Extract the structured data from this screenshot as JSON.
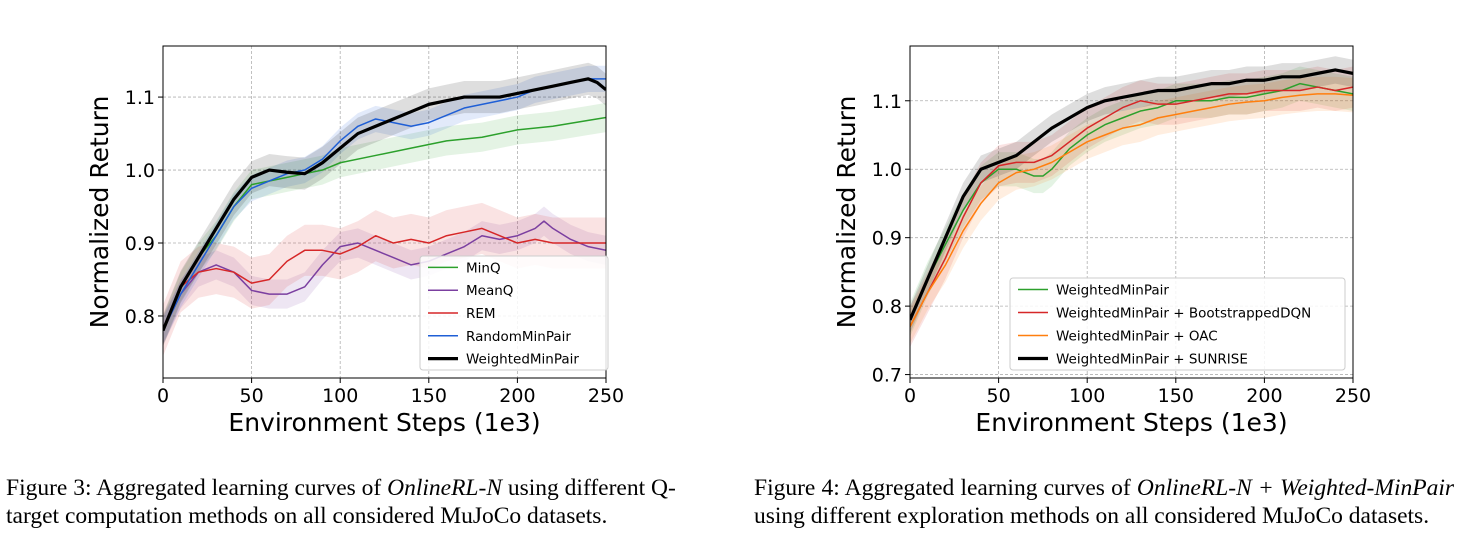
{
  "chart_data": [
    {
      "type": "line",
      "xlabel": "Environment Steps (1e3)",
      "ylabel": "Normalized Return",
      "xlim": [
        0,
        250
      ],
      "ylim": [
        0.715,
        1.17
      ],
      "xticks": [
        "0",
        "50",
        "100",
        "150",
        "200",
        "250"
      ],
      "xtick_values": [
        0,
        50,
        100,
        150,
        200,
        250
      ],
      "yticks": [
        "0.8",
        "0.9",
        "1.0",
        "1.1"
      ],
      "ytick_values": [
        0.8,
        0.9,
        1.0,
        1.1
      ],
      "grid": true,
      "legend_position": "lower-right",
      "series": [
        {
          "name": "MinQ",
          "color": "#2ca02c",
          "linewidth": 1.5,
          "x": [
            0,
            10,
            20,
            30,
            40,
            50,
            60,
            70,
            80,
            90,
            100,
            120,
            140,
            160,
            180,
            200,
            220,
            240,
            250
          ],
          "y": [
            0.78,
            0.84,
            0.88,
            0.91,
            0.95,
            0.98,
            0.985,
            0.99,
            0.995,
            1.0,
            1.01,
            1.02,
            1.03,
            1.04,
            1.045,
            1.055,
            1.06,
            1.068,
            1.072
          ],
          "band": 0.02
        },
        {
          "name": "MeanQ",
          "color": "#7b3fa0",
          "linewidth": 1.5,
          "x": [
            0,
            10,
            20,
            25,
            30,
            40,
            50,
            60,
            70,
            80,
            90,
            100,
            110,
            120,
            130,
            140,
            150,
            160,
            170,
            180,
            190,
            200,
            210,
            215,
            220,
            230,
            240,
            250
          ],
          "y": [
            0.78,
            0.83,
            0.86,
            0.865,
            0.87,
            0.86,
            0.835,
            0.83,
            0.83,
            0.84,
            0.87,
            0.895,
            0.9,
            0.89,
            0.88,
            0.87,
            0.875,
            0.885,
            0.895,
            0.91,
            0.905,
            0.91,
            0.92,
            0.93,
            0.92,
            0.905,
            0.895,
            0.89
          ],
          "band": 0.02
        },
        {
          "name": "REM",
          "color": "#d62728",
          "linewidth": 1.5,
          "x": [
            0,
            10,
            20,
            30,
            40,
            50,
            60,
            70,
            80,
            90,
            100,
            110,
            120,
            130,
            140,
            150,
            160,
            170,
            180,
            190,
            200,
            210,
            220,
            230,
            240,
            250
          ],
          "y": [
            0.78,
            0.84,
            0.86,
            0.865,
            0.86,
            0.845,
            0.85,
            0.875,
            0.89,
            0.89,
            0.885,
            0.895,
            0.91,
            0.9,
            0.905,
            0.9,
            0.91,
            0.915,
            0.92,
            0.91,
            0.9,
            0.905,
            0.9,
            0.9,
            0.9,
            0.9
          ],
          "band": 0.035
        },
        {
          "name": "RandomMinPair",
          "color": "#1f5fd6",
          "linewidth": 1.5,
          "x": [
            0,
            10,
            20,
            30,
            40,
            50,
            60,
            70,
            80,
            90,
            100,
            110,
            120,
            130,
            140,
            150,
            160,
            170,
            180,
            190,
            200,
            210,
            220,
            230,
            240,
            250
          ],
          "y": [
            0.78,
            0.83,
            0.87,
            0.91,
            0.95,
            0.975,
            0.985,
            0.995,
            1.0,
            1.015,
            1.04,
            1.06,
            1.07,
            1.065,
            1.06,
            1.065,
            1.075,
            1.085,
            1.09,
            1.095,
            1.1,
            1.11,
            1.115,
            1.12,
            1.125,
            1.125
          ],
          "band": 0.018
        },
        {
          "name": "WeightedMinPair",
          "color": "#000000",
          "linewidth": 3.2,
          "x": [
            0,
            10,
            20,
            30,
            40,
            50,
            60,
            70,
            80,
            90,
            100,
            110,
            120,
            130,
            140,
            150,
            160,
            170,
            180,
            190,
            200,
            210,
            220,
            230,
            240,
            245,
            250
          ],
          "y": [
            0.78,
            0.84,
            0.88,
            0.92,
            0.96,
            0.99,
            1.0,
            0.997,
            0.995,
            1.01,
            1.03,
            1.05,
            1.06,
            1.07,
            1.08,
            1.09,
            1.095,
            1.1,
            1.1,
            1.1,
            1.105,
            1.11,
            1.115,
            1.12,
            1.125,
            1.12,
            1.11
          ],
          "band": 0.022
        }
      ]
    },
    {
      "type": "line",
      "xlabel": "Environment Steps (1e3)",
      "ylabel": "Normalized Return",
      "xlim": [
        0,
        250
      ],
      "ylim": [
        0.695,
        1.18
      ],
      "xticks": [
        "0",
        "50",
        "100",
        "150",
        "200",
        "250"
      ],
      "xtick_values": [
        0,
        50,
        100,
        150,
        200,
        250
      ],
      "yticks": [
        "0.7",
        "0.8",
        "0.9",
        "1.0",
        "1.1"
      ],
      "ytick_values": [
        0.7,
        0.8,
        0.9,
        1.0,
        1.1
      ],
      "grid": true,
      "legend_position": "lower-right",
      "series": [
        {
          "name": "WeightedMinPair",
          "color": "#2ca02c",
          "linewidth": 1.5,
          "x": [
            0,
            10,
            20,
            30,
            40,
            50,
            60,
            70,
            75,
            80,
            90,
            100,
            110,
            120,
            130,
            140,
            150,
            160,
            170,
            180,
            190,
            200,
            210,
            220,
            230,
            240,
            250
          ],
          "y": [
            0.78,
            0.84,
            0.89,
            0.94,
            0.98,
            1.0,
            1.0,
            0.99,
            0.99,
            1.0,
            1.03,
            1.05,
            1.065,
            1.075,
            1.085,
            1.09,
            1.1,
            1.1,
            1.1,
            1.105,
            1.105,
            1.11,
            1.115,
            1.125,
            1.12,
            1.115,
            1.11
          ],
          "band": 0.025
        },
        {
          "name": "WeightedMinPair + BootstrappedDQN",
          "color": "#d62728",
          "linewidth": 1.5,
          "x": [
            0,
            10,
            20,
            30,
            40,
            50,
            60,
            70,
            80,
            90,
            100,
            110,
            120,
            130,
            140,
            150,
            160,
            170,
            180,
            190,
            200,
            210,
            220,
            230,
            240,
            250
          ],
          "y": [
            0.77,
            0.82,
            0.87,
            0.93,
            0.98,
            1.005,
            1.01,
            1.01,
            1.02,
            1.04,
            1.06,
            1.075,
            1.09,
            1.1,
            1.095,
            1.095,
            1.1,
            1.105,
            1.11,
            1.11,
            1.115,
            1.115,
            1.115,
            1.12,
            1.115,
            1.12
          ],
          "band": 0.03
        },
        {
          "name": "WeightedMinPair + OAC",
          "color": "#ff7f0e",
          "linewidth": 1.5,
          "x": [
            0,
            10,
            20,
            30,
            40,
            50,
            60,
            70,
            80,
            90,
            100,
            110,
            120,
            130,
            140,
            150,
            160,
            170,
            180,
            190,
            200,
            210,
            220,
            230,
            240,
            250
          ],
          "y": [
            0.77,
            0.82,
            0.86,
            0.91,
            0.95,
            0.98,
            0.995,
            1.0,
            1.01,
            1.025,
            1.04,
            1.05,
            1.06,
            1.065,
            1.075,
            1.08,
            1.085,
            1.09,
            1.095,
            1.098,
            1.1,
            1.105,
            1.108,
            1.11,
            1.11,
            1.108
          ],
          "band": 0.025
        },
        {
          "name": "WeightedMinPair + SUNRISE",
          "color": "#000000",
          "linewidth": 3.2,
          "x": [
            0,
            10,
            20,
            30,
            40,
            50,
            60,
            70,
            80,
            90,
            100,
            110,
            120,
            130,
            140,
            150,
            160,
            170,
            180,
            190,
            200,
            210,
            220,
            230,
            240,
            250
          ],
          "y": [
            0.78,
            0.84,
            0.9,
            0.96,
            1.0,
            1.01,
            1.02,
            1.04,
            1.06,
            1.075,
            1.09,
            1.1,
            1.105,
            1.11,
            1.115,
            1.115,
            1.12,
            1.125,
            1.125,
            1.13,
            1.13,
            1.135,
            1.135,
            1.14,
            1.145,
            1.14
          ],
          "band": 0.02
        }
      ]
    }
  ],
  "captions": {
    "fig3": {
      "label": "Figure 3: Aggregated learning curves of ",
      "method": "OnlineRL-N",
      "rest": " using different Q-target computation methods on all considered MuJoCo datasets."
    },
    "fig4": {
      "label": "Figure 4: Aggregated learning curves of ",
      "method": "OnlineRL-N + Weighted-MinPair",
      "rest": " using different exploration methods on all considered MuJoCo datasets."
    }
  }
}
